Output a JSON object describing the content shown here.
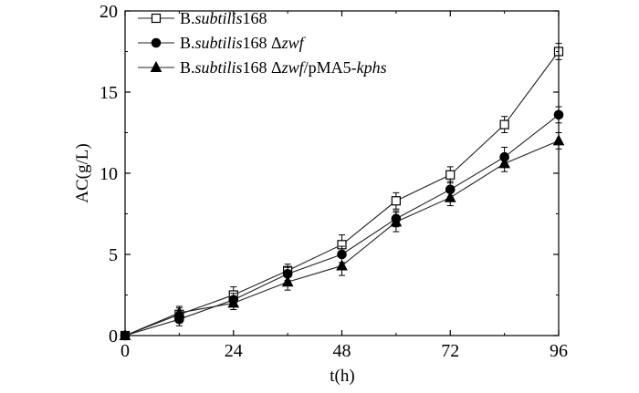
{
  "chart_data": {
    "type": "line",
    "title": "",
    "xlabel": "t(h)",
    "ylabel": "AC(g/L)",
    "xlim": [
      0,
      96
    ],
    "ylim": [
      0,
      20
    ],
    "xticks": [
      0,
      24,
      48,
      72,
      96
    ],
    "yticks": [
      0,
      5,
      10,
      15,
      20
    ],
    "grid": false,
    "legend_position": "top-left",
    "series": [
      {
        "legend_parts": [
          {
            "text": "B.",
            "italic": false
          },
          {
            "text": "subtilis",
            "italic": true
          },
          {
            "text": "168",
            "italic": false
          }
        ],
        "marker": "open-square",
        "x": [
          0,
          12,
          24,
          36,
          48,
          60,
          72,
          84,
          96
        ],
        "values": [
          0,
          1.3,
          2.5,
          4.0,
          5.6,
          8.3,
          9.9,
          13.0,
          17.5
        ],
        "error": [
          0,
          0.4,
          0.5,
          0.4,
          0.6,
          0.5,
          0.5,
          0.5,
          0.5
        ]
      },
      {
        "legend_parts": [
          {
            "text": "B.",
            "italic": false
          },
          {
            "text": "subtilis",
            "italic": true
          },
          {
            "text": "168 Δ",
            "italic": false
          },
          {
            "text": "zwf",
            "italic": true
          }
        ],
        "marker": "filled-circle",
        "x": [
          0,
          12,
          24,
          36,
          48,
          60,
          72,
          84,
          96
        ],
        "values": [
          0,
          1.0,
          2.2,
          3.8,
          5.0,
          7.2,
          9.0,
          11.0,
          13.6
        ],
        "error": [
          0,
          0.4,
          0.4,
          0.4,
          0.5,
          0.5,
          0.5,
          0.6,
          0.5
        ]
      },
      {
        "legend_parts": [
          {
            "text": "B.",
            "italic": false
          },
          {
            "text": "subtilis",
            "italic": true
          },
          {
            "text": "168 Δ",
            "italic": false
          },
          {
            "text": "zwf",
            "italic": true
          },
          {
            "text": "/pMA5-",
            "italic": false
          },
          {
            "text": "kphs",
            "italic": true
          }
        ],
        "marker": "filled-triangle",
        "x": [
          0,
          12,
          24,
          36,
          48,
          60,
          72,
          84,
          96
        ],
        "values": [
          0,
          1.4,
          2.0,
          3.3,
          4.3,
          7.0,
          8.5,
          10.6,
          12.0
        ],
        "error": [
          0,
          0.4,
          0.4,
          0.5,
          0.6,
          0.6,
          0.5,
          0.5,
          0.5
        ]
      }
    ]
  }
}
